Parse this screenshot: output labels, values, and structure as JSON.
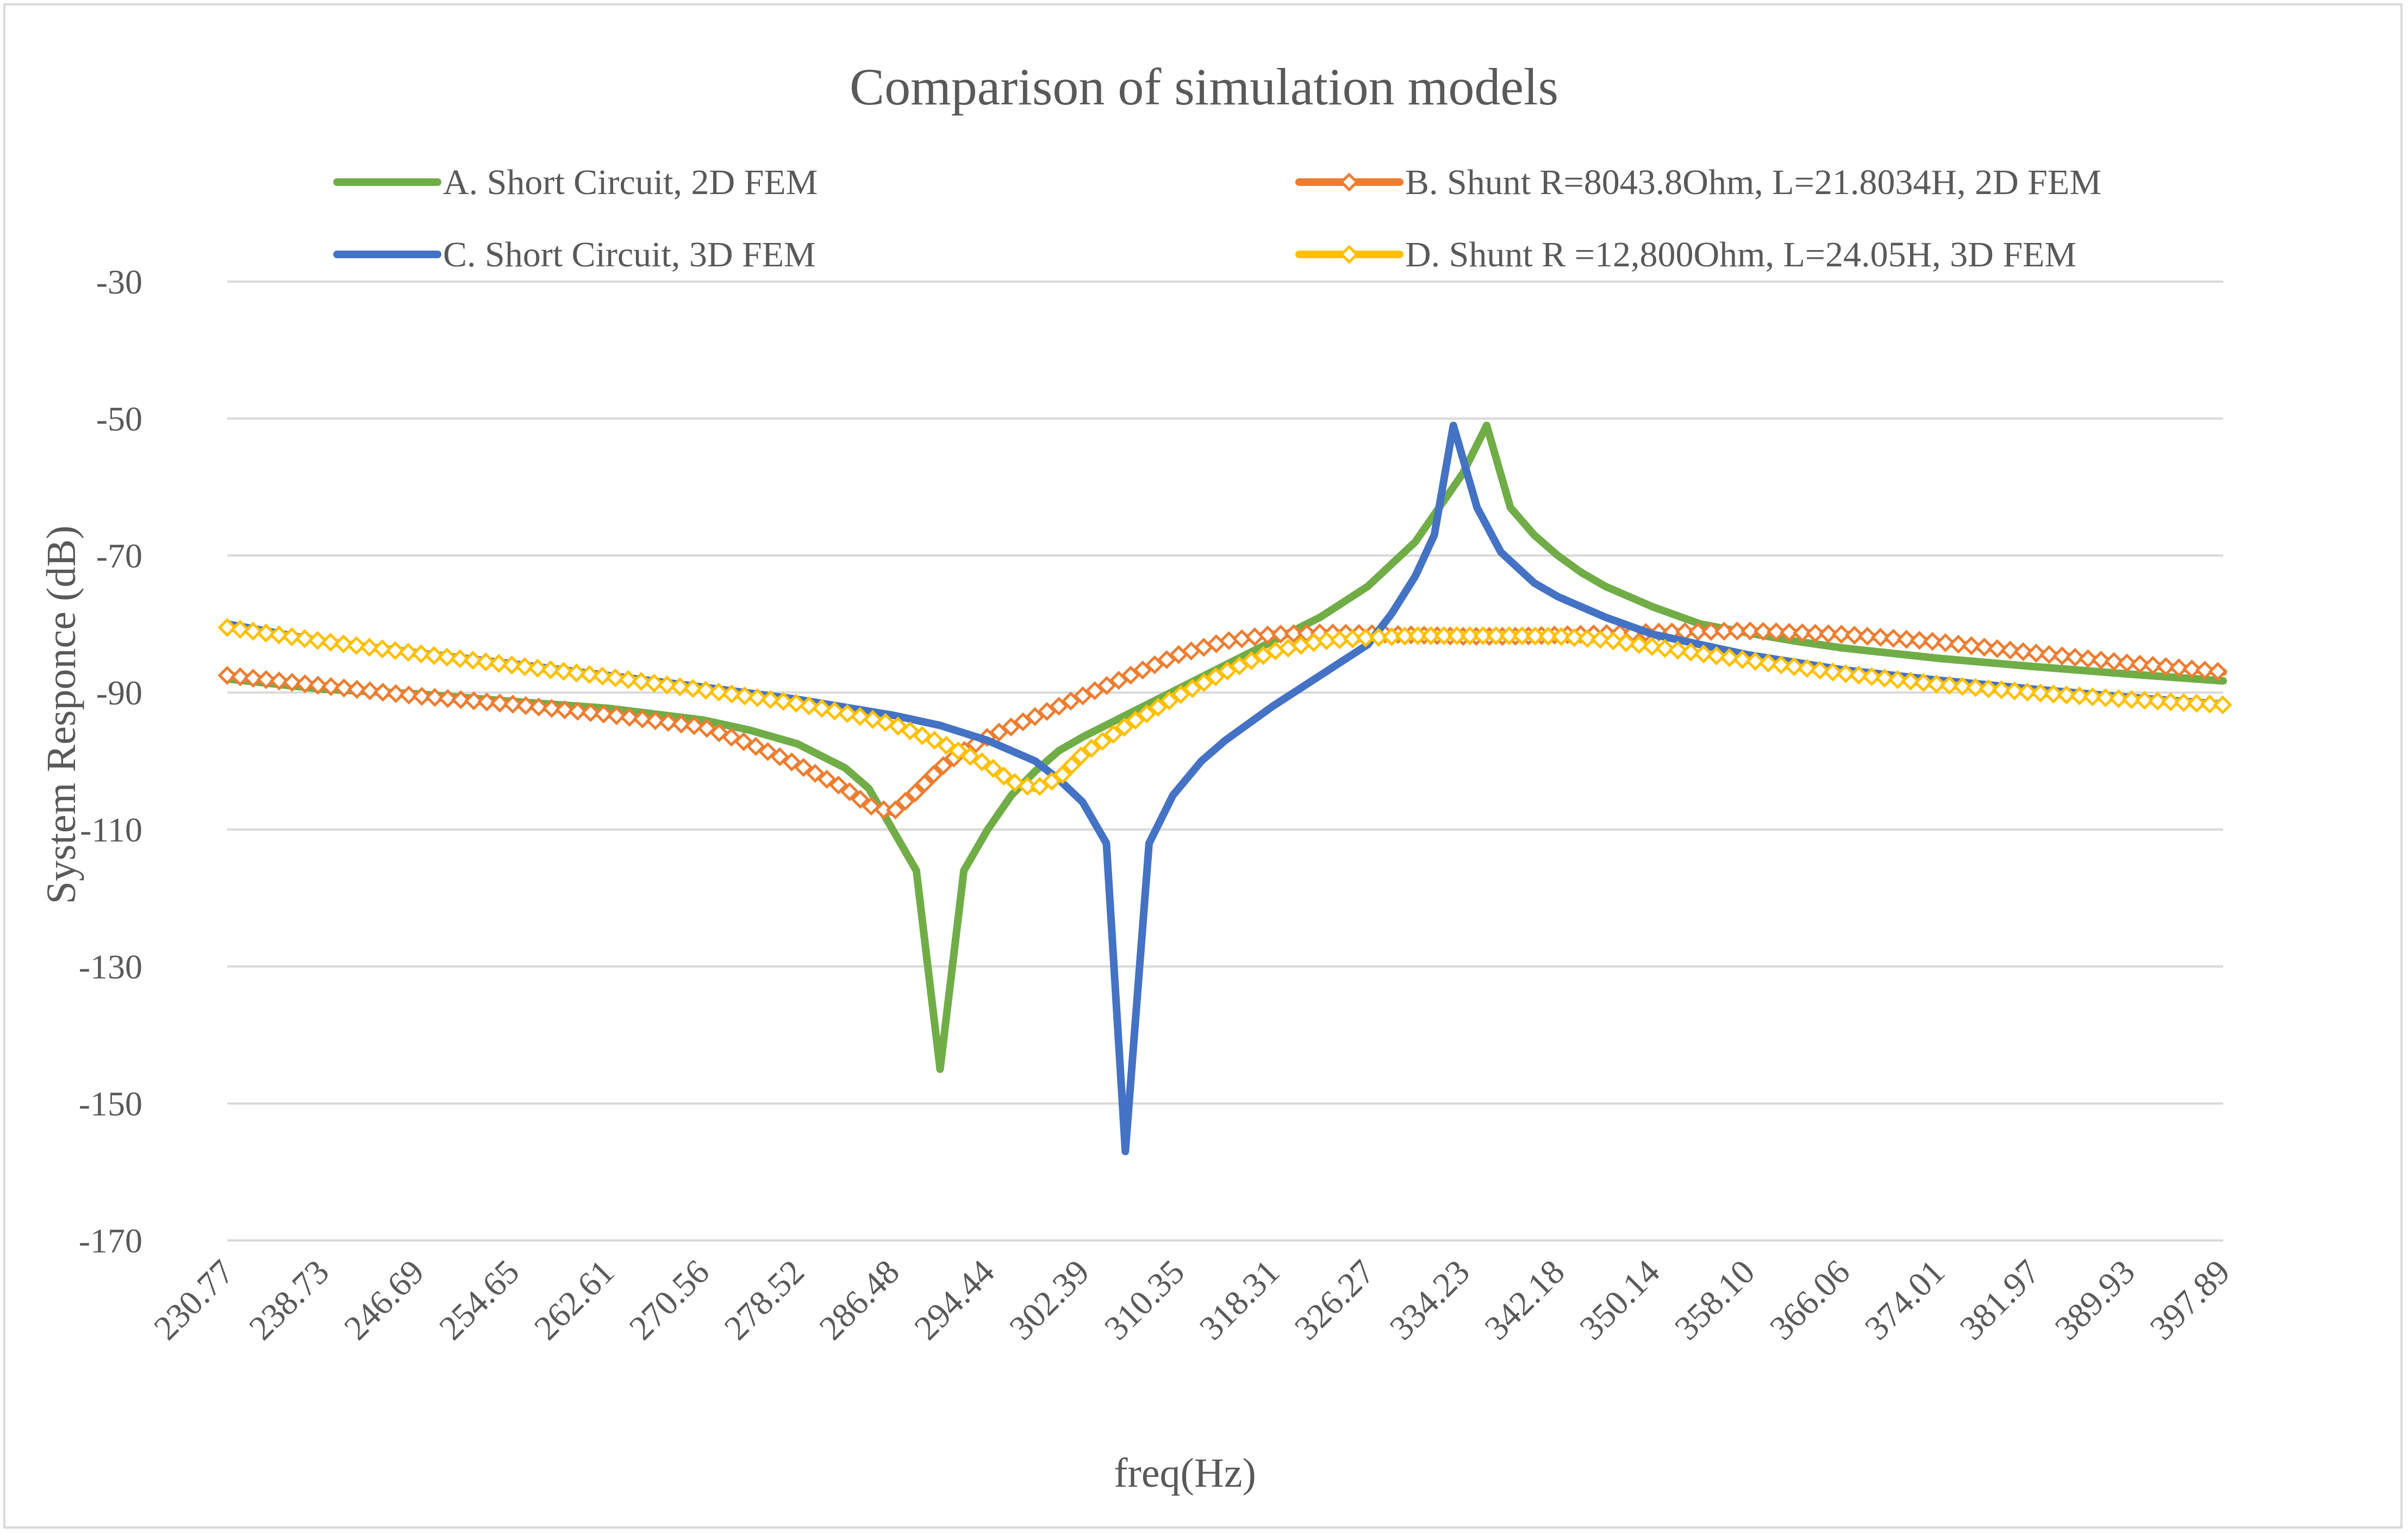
{
  "chart_data": {
    "type": "line",
    "title": "Comparison of simulation models",
    "xlabel": "freq(Hz)",
    "ylabel": "System  Responce (dB)",
    "ylim": [
      -170,
      -30
    ],
    "yticks": [
      "-30",
      "-50",
      "-70",
      "-90",
      "-110",
      "-130",
      "-150",
      "-170"
    ],
    "xlim": [
      230.77,
      397.89
    ],
    "xticks": [
      "230.77",
      "238.73",
      "246.69",
      "254.65",
      "262.61",
      "270.56",
      "278.52",
      "286.48",
      "294.44",
      "302.39",
      "310.35",
      "318.31",
      "326.27",
      "334.23",
      "342.18",
      "350.14",
      "358.10",
      "366.06",
      "374.01",
      "381.97",
      "389.93",
      "397.89"
    ],
    "grid": "horizontal",
    "legend_position": "top",
    "series": [
      {
        "name": "A. Short Circuit, 2D FEM",
        "color": "#70ad47",
        "marker": "none",
        "x": [
          230.77,
          238.73,
          246.69,
          254.65,
          262.61,
          270.56,
          274.54,
          278.52,
          282.5,
          284.49,
          286.48,
          288.47,
          290.46,
          292.45,
          294.44,
          296.43,
          298.42,
          300.41,
          302.39,
          306.37,
          310.35,
          314.33,
          318.31,
          322.29,
          326.27,
          330.25,
          334.23,
          336.22,
          338.21,
          340.2,
          342.18,
          344.17,
          346.16,
          350.14,
          354.12,
          358.1,
          362.08,
          366.06,
          374.01,
          381.97,
          389.93,
          397.89
        ],
        "y": [
          -88,
          -89.5,
          -90.2,
          -91.3,
          -92.3,
          -94,
          -95.5,
          -97.5,
          -101,
          -104,
          -110,
          -116,
          -145,
          -116,
          -110,
          -105,
          -101.5,
          -98.5,
          -96.5,
          -93,
          -89.5,
          -86,
          -82.5,
          -79,
          -74.5,
          -68,
          -58,
          -51,
          -63,
          -67,
          -70,
          -72.5,
          -74.5,
          -77.5,
          -80,
          -81.3,
          -82.5,
          -83.5,
          -85,
          -86.2,
          -87.3,
          -88.3
        ]
      },
      {
        "name": "B. Shunt R=8043.8Ohm, L=21.8034H, 2D FEM",
        "color": "#ed7d31",
        "marker": "diamond",
        "x": [
          230.77,
          238.73,
          246.69,
          254.65,
          262.61,
          270.56,
          274.54,
          278.52,
          282.5,
          284.49,
          286.48,
          288.47,
          290.46,
          292.45,
          294.44,
          298.42,
          302.39,
          306.37,
          310.35,
          314.33,
          318.31,
          322.29,
          326.27,
          330.25,
          334.23,
          338.21,
          342.18,
          350.14,
          358.1,
          366.06,
          374.01,
          381.97,
          389.93,
          397.89
        ],
        "y": [
          -87.5,
          -89,
          -90.5,
          -91.7,
          -93.2,
          -95,
          -97.5,
          -100.5,
          -104,
          -106.5,
          -107.5,
          -104.5,
          -101,
          -98.5,
          -96.5,
          -93.5,
          -90.5,
          -87.5,
          -84.5,
          -82.5,
          -81.5,
          -81.3,
          -81.4,
          -81.6,
          -81.8,
          -81.8,
          -81.6,
          -81.2,
          -81,
          -81.5,
          -82.6,
          -84.2,
          -85.7,
          -87
        ]
      },
      {
        "name": "C. Short Circuit, 3D FEM",
        "color": "#4472c4",
        "marker": "none",
        "x": [
          230.77,
          238.73,
          246.69,
          254.65,
          262.61,
          270.56,
          278.52,
          286.48,
          290.46,
          294.44,
          298.42,
          300.41,
          302.39,
          304.38,
          305.97,
          307.96,
          309.95,
          312.34,
          314.33,
          318.31,
          322.29,
          326.27,
          328.26,
          330.25,
          331.84,
          333.43,
          335.42,
          337.41,
          340.2,
          342.18,
          346.16,
          350.14,
          358.1,
          366.06,
          374.01,
          381.97,
          389.93,
          397.89
        ],
        "y": [
          -80,
          -82.5,
          -84.2,
          -85.8,
          -87.5,
          -89.2,
          -91,
          -93.3,
          -94.8,
          -97,
          -100,
          -102.7,
          -106,
          -112,
          -157,
          -112,
          -105,
          -100,
          -97,
          -92,
          -87.5,
          -83,
          -78.5,
          -73,
          -67,
          -51,
          -63,
          -69.5,
          -74,
          -76,
          -79,
          -81.5,
          -84.5,
          -86.7,
          -88.2,
          -89.5,
          -90.7,
          -91.7
        ]
      },
      {
        "name": "D. Shunt R =12,800Ohm, L=24.05H, 3D FEM",
        "color": "#ffc000",
        "marker": "diamond",
        "x": [
          230.77,
          238.73,
          246.69,
          254.65,
          262.61,
          270.56,
          278.52,
          282.5,
          286.48,
          290.46,
          294.44,
          296.43,
          298.42,
          300.41,
          302.39,
          306.37,
          310.35,
          314.33,
          318.31,
          322.29,
          326.27,
          330.25,
          334.23,
          338.21,
          342.18,
          346.16,
          350.14,
          358.1,
          366.06,
          374.01,
          381.97,
          389.93,
          397.89
        ],
        "y": [
          -80.5,
          -82.5,
          -84.3,
          -86,
          -87.7,
          -89.6,
          -91.6,
          -93,
          -94.6,
          -97.3,
          -100.5,
          -103,
          -104,
          -102.5,
          -99,
          -94.5,
          -90.5,
          -87,
          -84,
          -82.5,
          -82,
          -81.7,
          -81.7,
          -81.7,
          -81.8,
          -82.3,
          -83.3,
          -85.3,
          -87.2,
          -88.8,
          -90,
          -91,
          -91.8
        ]
      }
    ]
  }
}
